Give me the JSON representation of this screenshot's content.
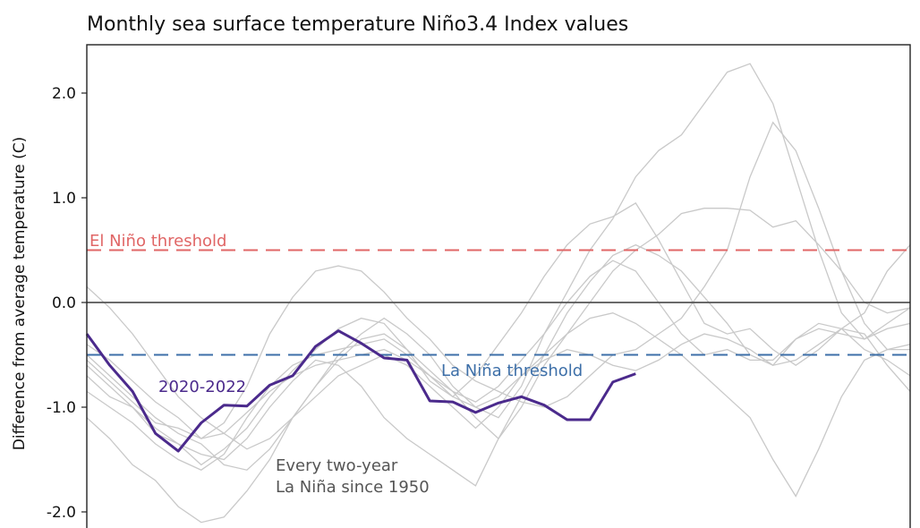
{
  "chart_data": {
    "type": "line",
    "title": "Monthly sea surface temperature Niño3.4 Index values",
    "xlabel": "",
    "ylabel": "Difference from average temperature (C)",
    "ylim": [
      -2.1,
      2.5
    ],
    "xlim": [
      0,
      36
    ],
    "y_ticks": [
      2.0,
      1.0,
      0.0,
      -1.0,
      -2.0
    ],
    "y_tick_labels": [
      "2.0",
      "1.0",
      "0.0",
      "-1.0",
      "-2.0"
    ],
    "zero_line": 0.0,
    "thresholds": [
      {
        "name": "El Niño threshold",
        "value": 0.5,
        "color": "#e06666"
      },
      {
        "name": "La Niña threshold",
        "value": -0.5,
        "color": "#3d6fa8"
      }
    ],
    "highlight_series": {
      "name": "2020-2022",
      "color": "#4b2a8c",
      "x": [
        0,
        1,
        2,
        3,
        4,
        5,
        6,
        7,
        8,
        9,
        10,
        11,
        12,
        13,
        14,
        15,
        16,
        17,
        18,
        19,
        20,
        21,
        22,
        23,
        24,
        25,
        26,
        27,
        28,
        29,
        30,
        31,
        32,
        33,
        34,
        35,
        36
      ],
      "values": [
        -0.3,
        -0.6,
        -0.85,
        -1.25,
        -1.42,
        -1.15,
        -0.98,
        -0.99,
        -0.79,
        -0.7,
        -0.42,
        -0.27,
        -0.39,
        -0.53,
        -0.55,
        -0.94,
        -0.95,
        -1.05,
        -0.96,
        -0.9,
        -0.98,
        -1.12,
        -1.12,
        -0.76,
        -0.68,
        null,
        null,
        null,
        null,
        null,
        null,
        null,
        null,
        null,
        null,
        null,
        null
      ]
    },
    "background_series": [
      {
        "name": "la-nina-1",
        "values": [
          0.15,
          -0.05,
          -0.3,
          -0.6,
          -0.9,
          -1.1,
          -1.25,
          -1.4,
          -1.3,
          -1.1,
          -0.8,
          -0.5,
          -0.3,
          -0.15,
          -0.3,
          -0.5,
          -0.8,
          -1.0,
          -1.1,
          -0.8,
          -0.3,
          0.1,
          0.5,
          0.8,
          1.2,
          1.45,
          1.6,
          1.9,
          2.2,
          2.28,
          1.9,
          1.2,
          0.5,
          -0.1,
          -0.35,
          -0.2,
          -0.05
        ]
      },
      {
        "name": "la-nina-2",
        "values": [
          -0.6,
          -0.8,
          -1.0,
          -1.2,
          -1.35,
          -1.55,
          -1.4,
          -1.2,
          -0.9,
          -0.65,
          -0.45,
          -0.25,
          -0.15,
          -0.2,
          -0.45,
          -0.75,
          -0.9,
          -0.7,
          -0.4,
          -0.1,
          0.25,
          0.55,
          0.75,
          0.82,
          0.95,
          0.6,
          0.2,
          -0.2,
          -0.3,
          -0.25,
          -0.45,
          -0.6,
          -0.45,
          -0.25,
          -0.3,
          -0.6,
          -0.85
        ]
      },
      {
        "name": "la-nina-3",
        "values": [
          -1.1,
          -1.3,
          -1.55,
          -1.7,
          -1.95,
          -2.1,
          -2.05,
          -1.8,
          -1.5,
          -1.1,
          -0.8,
          -0.55,
          -0.35,
          -0.3,
          -0.45,
          -0.65,
          -0.85,
          -1.1,
          -1.3,
          -1.0,
          -0.6,
          -0.3,
          -0.15,
          -0.1,
          -0.2,
          -0.35,
          -0.5,
          -0.7,
          -0.9,
          -1.1,
          -1.5,
          -1.85,
          -1.4,
          -0.9,
          -0.55,
          -0.45,
          -0.4
        ]
      },
      {
        "name": "la-nina-4",
        "values": [
          -0.5,
          -0.7,
          -0.9,
          -1.1,
          -1.25,
          -1.35,
          -1.55,
          -1.6,
          -1.4,
          -1.1,
          -0.9,
          -0.7,
          -0.6,
          -0.5,
          -0.6,
          -0.8,
          -1.0,
          -1.2,
          -1.0,
          -0.7,
          -0.5,
          -0.3,
          0.0,
          0.3,
          0.5,
          0.65,
          0.85,
          0.9,
          0.9,
          0.88,
          0.72,
          0.78,
          0.55,
          0.3,
          0.0,
          -0.1,
          -0.05
        ]
      },
      {
        "name": "la-nina-5",
        "values": [
          -0.7,
          -0.9,
          -1.0,
          -1.25,
          -1.35,
          -1.45,
          -1.5,
          -1.3,
          -1.0,
          -0.75,
          -0.55,
          -0.6,
          -0.8,
          -1.1,
          -1.3,
          -1.45,
          -1.6,
          -1.75,
          -1.3,
          -0.9,
          -0.5,
          -0.1,
          0.2,
          0.45,
          0.55,
          0.45,
          0.3,
          0.05,
          -0.2,
          -0.5,
          -0.6,
          -0.35,
          -0.2,
          -0.25,
          -0.45,
          -0.55,
          -0.7
        ]
      },
      {
        "name": "la-nina-6",
        "values": [
          -0.4,
          -0.55,
          -0.75,
          -0.95,
          -1.1,
          -1.3,
          -1.15,
          -0.8,
          -0.3,
          0.05,
          0.3,
          0.35,
          0.3,
          0.1,
          -0.15,
          -0.35,
          -0.6,
          -0.75,
          -0.85,
          -0.95,
          -1.0,
          -0.9,
          -0.7,
          -0.5,
          -0.45,
          -0.3,
          -0.15,
          0.15,
          0.5,
          1.2,
          1.72,
          1.45,
          0.9,
          0.3,
          -0.2,
          -0.45,
          -0.45
        ]
      },
      {
        "name": "la-nina-7",
        "values": [
          -0.85,
          -1.0,
          -1.15,
          -1.35,
          -1.5,
          -1.6,
          -1.45,
          -1.1,
          -0.8,
          -0.6,
          -0.5,
          -0.45,
          -0.4,
          -0.35,
          -0.5,
          -0.7,
          -0.85,
          -0.95,
          -0.8,
          -0.55,
          -0.3,
          0.0,
          0.25,
          0.4,
          0.3,
          0.0,
          -0.3,
          -0.5,
          -0.45,
          -0.55,
          -0.55,
          -0.35,
          -0.25,
          -0.3,
          -0.35,
          -0.25,
          -0.2
        ]
      },
      {
        "name": "la-nina-8",
        "values": [
          -0.55,
          -0.75,
          -0.95,
          -1.15,
          -1.2,
          -1.3,
          -1.25,
          -1.05,
          -0.85,
          -0.7,
          -0.6,
          -0.55,
          -0.5,
          -0.45,
          -0.55,
          -0.7,
          -0.9,
          -1.0,
          -0.9,
          -0.7,
          -0.55,
          -0.45,
          -0.5,
          -0.6,
          -0.65,
          -0.55,
          -0.4,
          -0.3,
          -0.35,
          -0.45,
          -0.6,
          -0.55,
          -0.4,
          -0.25,
          -0.1,
          0.3,
          0.55
        ]
      }
    ],
    "annotations": [
      {
        "text": "El Niño threshold"
      },
      {
        "text": "La Niña threshold"
      },
      {
        "text": "2020-2022"
      },
      {
        "text": "Every two-year"
      },
      {
        "text": "La Niña since 1950"
      }
    ]
  }
}
